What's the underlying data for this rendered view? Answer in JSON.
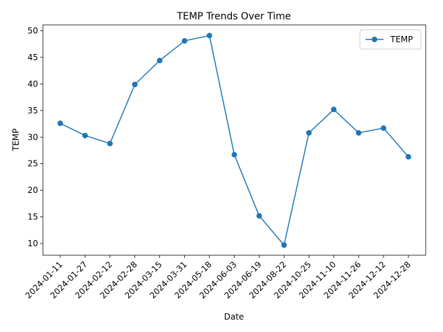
{
  "chart_data": {
    "type": "line",
    "title": "TEMP Trends Over Time",
    "xlabel": "Date",
    "ylabel": "TEMP",
    "categories": [
      "2024-01-11",
      "2024-01-27",
      "2024-02-12",
      "2024-02-28",
      "2024-03-15",
      "2024-03-31",
      "2024-05-18",
      "2024-06-03",
      "2024-06-19",
      "2024-08-22",
      "2024-10-25",
      "2024-11-10",
      "2024-11-26",
      "2024-12-12",
      "2024-12-28"
    ],
    "series": [
      {
        "name": "TEMP",
        "color": "#1f77b4",
        "marker": "circle",
        "values": [
          32.6,
          30.3,
          28.8,
          39.9,
          44.4,
          48.1,
          49.1,
          26.7,
          15.2,
          9.7,
          30.8,
          35.2,
          30.8,
          31.7,
          26.3
        ]
      }
    ],
    "ylim": [
      7.8,
      51.1
    ],
    "yticks": [
      10,
      15,
      20,
      25,
      30,
      35,
      40,
      45,
      50
    ],
    "grid": false,
    "legend": "top-right"
  }
}
